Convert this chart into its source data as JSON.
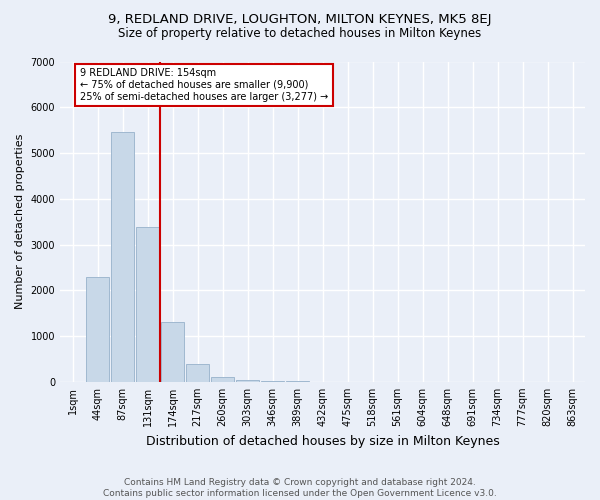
{
  "title1": "9, REDLAND DRIVE, LOUGHTON, MILTON KEYNES, MK5 8EJ",
  "title2": "Size of property relative to detached houses in Milton Keynes",
  "xlabel": "Distribution of detached houses by size in Milton Keynes",
  "ylabel": "Number of detached properties",
  "footnote": "Contains HM Land Registry data © Crown copyright and database right 2024.\nContains public sector information licensed under the Open Government Licence v3.0.",
  "bar_labels": [
    "1sqm",
    "44sqm",
    "87sqm",
    "131sqm",
    "174sqm",
    "217sqm",
    "260sqm",
    "303sqm",
    "346sqm",
    "389sqm",
    "432sqm",
    "475sqm",
    "518sqm",
    "561sqm",
    "604sqm",
    "648sqm",
    "691sqm",
    "734sqm",
    "777sqm",
    "820sqm",
    "863sqm"
  ],
  "bar_values": [
    0,
    2280,
    5450,
    3380,
    1300,
    380,
    100,
    50,
    20,
    10,
    5,
    2,
    1,
    0,
    0,
    0,
    0,
    0,
    0,
    0,
    0
  ],
  "bar_color": "#c8d8e8",
  "bar_edge_color": "#a0b8d0",
  "vline_color": "#cc0000",
  "annotation_text": "9 REDLAND DRIVE: 154sqm\n← 75% of detached houses are smaller (9,900)\n25% of semi-detached houses are larger (3,277) →",
  "annotation_box_color": "#ffffff",
  "annotation_box_edge": "#cc0000",
  "ylim": [
    0,
    7000
  ],
  "yticks": [
    0,
    1000,
    2000,
    3000,
    4000,
    5000,
    6000,
    7000
  ],
  "bg_color": "#eaeff8",
  "plot_bg_color": "#eaeff8",
  "grid_color": "#ffffff",
  "title1_fontsize": 9.5,
  "title2_fontsize": 8.5,
  "xlabel_fontsize": 9,
  "ylabel_fontsize": 8,
  "footnote_fontsize": 6.5,
  "tick_fontsize": 7
}
